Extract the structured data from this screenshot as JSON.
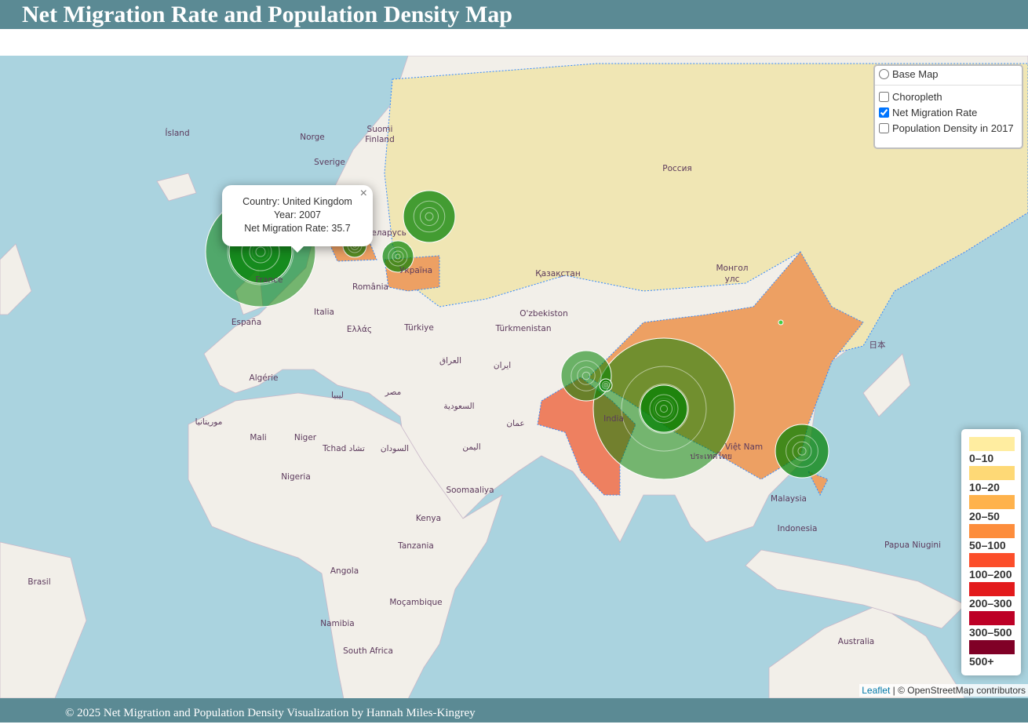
{
  "header": {
    "title": "Net Migration Rate and Population Density Map"
  },
  "layer_control": {
    "base_layers": [
      "Base Map"
    ],
    "overlays": [
      {
        "label": "Choropleth",
        "checked": false
      },
      {
        "label": "Net Migration Rate",
        "checked": true
      },
      {
        "label": "Population Density in 2017",
        "checked": false
      }
    ]
  },
  "popup": {
    "lines": [
      "Country: United Kingdom",
      "Year: 2007",
      "Net Migration Rate: 35.7"
    ],
    "close": "×"
  },
  "legend": {
    "items": [
      {
        "label": "0–10",
        "color": "#ffeda0"
      },
      {
        "label": "10–20",
        "color": "#fed976"
      },
      {
        "label": "20–50",
        "color": "#feb24c"
      },
      {
        "label": "50–100",
        "color": "#fd8d3c"
      },
      {
        "label": "100–200",
        "color": "#fc4e2a"
      },
      {
        "label": "200–300",
        "color": "#e31a1c"
      },
      {
        "label": "300–500",
        "color": "#bd0026"
      },
      {
        "label": "500+",
        "color": "#800026"
      }
    ]
  },
  "map": {
    "places": [
      "Ísland",
      "Norge",
      "Sverige",
      "Suomi",
      "Finland",
      "Россия",
      "Беларусь",
      "Україна",
      "France",
      "España",
      "Italia",
      "Ελλάς",
      "România",
      "Türkiye",
      "Қазақстан",
      "Монгол",
      "улс",
      "O'zbekiston",
      "Türkmenistan",
      "العراق",
      "ایران",
      "مصر",
      "السعودية",
      "عمان",
      "اليمن",
      "Algérie",
      "ليبيا",
      "موريتانيا",
      "Mali",
      "Niger",
      "Tchad تشاد",
      "السودان",
      "Nigeria",
      "Kenya",
      "Soomaaliya",
      "Tanzania",
      "Angola",
      "Moçambique",
      "Namibia",
      "South Africa",
      "Brasil",
      "India",
      "Việt Nam",
      "Malaysia",
      "Indonesia",
      "Papua Niugini",
      "Australia",
      "日本",
      "ประเทศไทย",
      "Italia"
    ]
  },
  "attribution": {
    "leaflet": "Leaflet",
    "rest": "| © OpenStreetMap contributors"
  },
  "footer": {
    "text": "© 2025 Net Migration and Population Density Visualization by Hannah Miles-Kingrey"
  }
}
